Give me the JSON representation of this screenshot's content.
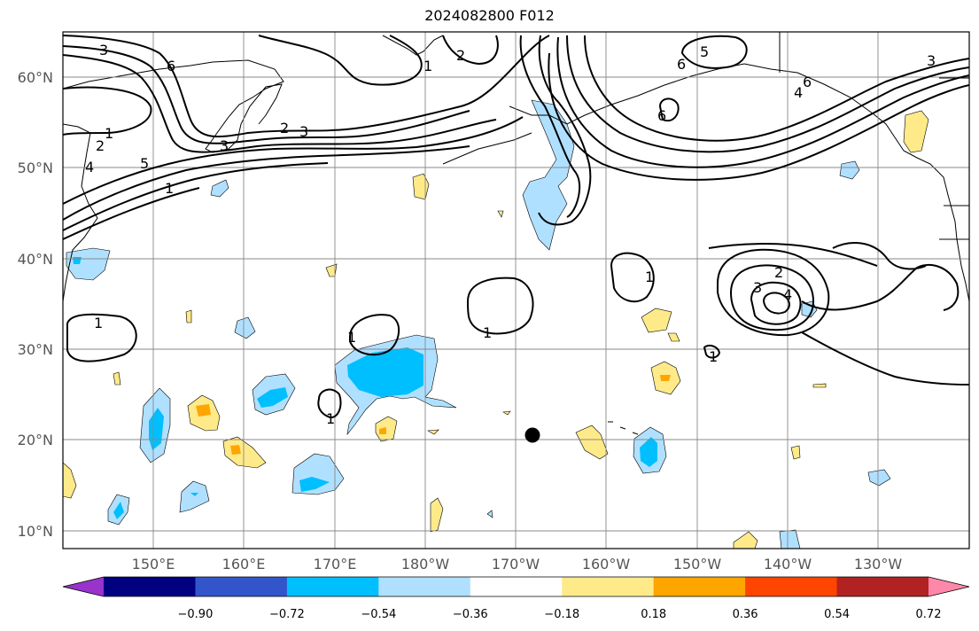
{
  "title": "2024082800 F012",
  "lat_labels": [
    "60°N",
    "50°N",
    "40°N",
    "30°N",
    "20°N",
    "10°N"
  ],
  "lon_labels": [
    "150°E",
    "160°E",
    "170°E",
    "180°W",
    "170°W",
    "160°W",
    "150°W",
    "140°W",
    "130°W"
  ],
  "colorbar": {
    "tick_labels": [
      "−0.90",
      "−0.72",
      "−0.54",
      "−0.36",
      "−0.18",
      "0.18",
      "0.36",
      "0.54",
      "0.72",
      "0.90"
    ],
    "colors": [
      "#9933cc",
      "#000080",
      "#3355cc",
      "#00bfff",
      "#b0e0ff",
      "#ffffff",
      "#ffea8a",
      "#ffa500",
      "#ff4500",
      "#b22222",
      "#ff88aa"
    ]
  },
  "contour_labels": [
    "3",
    "6",
    "1",
    "2",
    "4",
    "5",
    "1",
    "2",
    "3",
    "1",
    "2",
    "3",
    "1",
    "2",
    "4",
    "5",
    "6",
    "5",
    "6",
    "1",
    "2",
    "3",
    "4",
    "3",
    "1",
    "1",
    "1",
    "1",
    "1",
    "1"
  ],
  "marker": "storm-center-dot"
}
